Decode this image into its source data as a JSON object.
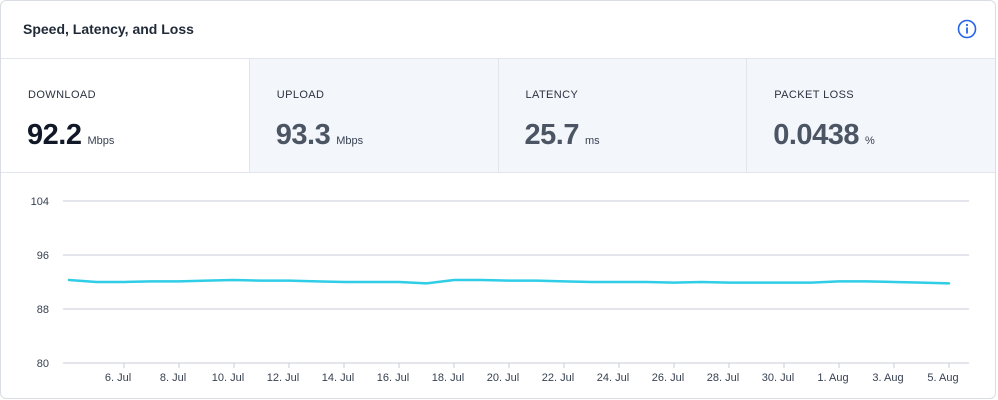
{
  "header": {
    "title": "Speed, Latency, and Loss",
    "info_icon": "info-icon"
  },
  "metrics": [
    {
      "label": "DOWNLOAD",
      "value": "92.2",
      "unit": "Mbps",
      "active": true
    },
    {
      "label": "UPLOAD",
      "value": "93.3",
      "unit": "Mbps",
      "active": false
    },
    {
      "label": "LATENCY",
      "value": "25.7",
      "unit": "ms",
      "active": false
    },
    {
      "label": "PACKET LOSS",
      "value": "0.0438",
      "unit": "%",
      "active": false
    }
  ],
  "colors": {
    "line": "#2fcde6",
    "grid": "#c9ccd8",
    "info": "#2563eb"
  },
  "chart_data": {
    "type": "line",
    "title": "",
    "xlabel": "",
    "ylabel": "",
    "ylim": [
      80,
      104
    ],
    "yticks": [
      "104",
      "96",
      "88",
      "80"
    ],
    "ytick_values": [
      104,
      96,
      88,
      80
    ],
    "xticks": [
      "6. Jul",
      "8. Jul",
      "10. Jul",
      "12. Jul",
      "14. Jul",
      "16. Jul",
      "18. Jul",
      "20. Jul",
      "22. Jul",
      "24. Jul",
      "26. Jul",
      "28. Jul",
      "30. Jul",
      "1. Aug",
      "3. Aug",
      "5. Aug"
    ],
    "grid": true,
    "series": [
      {
        "x": [
          "4. Jul",
          "5. Jul",
          "6. Jul",
          "7. Jul",
          "8. Jul",
          "9. Jul",
          "10. Jul",
          "11. Jul",
          "12. Jul",
          "13. Jul",
          "14. Jul",
          "15. Jul",
          "16. Jul",
          "17. Jul",
          "18. Jul",
          "19. Jul",
          "20. Jul",
          "21. Jul",
          "22. Jul",
          "23. Jul",
          "24. Jul",
          "25. Jul",
          "26. Jul",
          "27. Jul",
          "28. Jul",
          "29. Jul",
          "30. Jul",
          "31. Jul",
          "1. Aug",
          "2. Aug",
          "3. Aug",
          "4. Aug",
          "5. Aug"
        ],
        "values": [
          92.3,
          92.0,
          92.0,
          92.1,
          92.1,
          92.2,
          92.3,
          92.2,
          92.2,
          92.1,
          92.0,
          92.0,
          92.0,
          91.8,
          92.3,
          92.3,
          92.2,
          92.2,
          92.1,
          92.0,
          92.0,
          92.0,
          91.9,
          92.0,
          91.9,
          91.9,
          91.9,
          91.9,
          92.1,
          92.1,
          92.0,
          91.9,
          91.8
        ]
      }
    ]
  }
}
